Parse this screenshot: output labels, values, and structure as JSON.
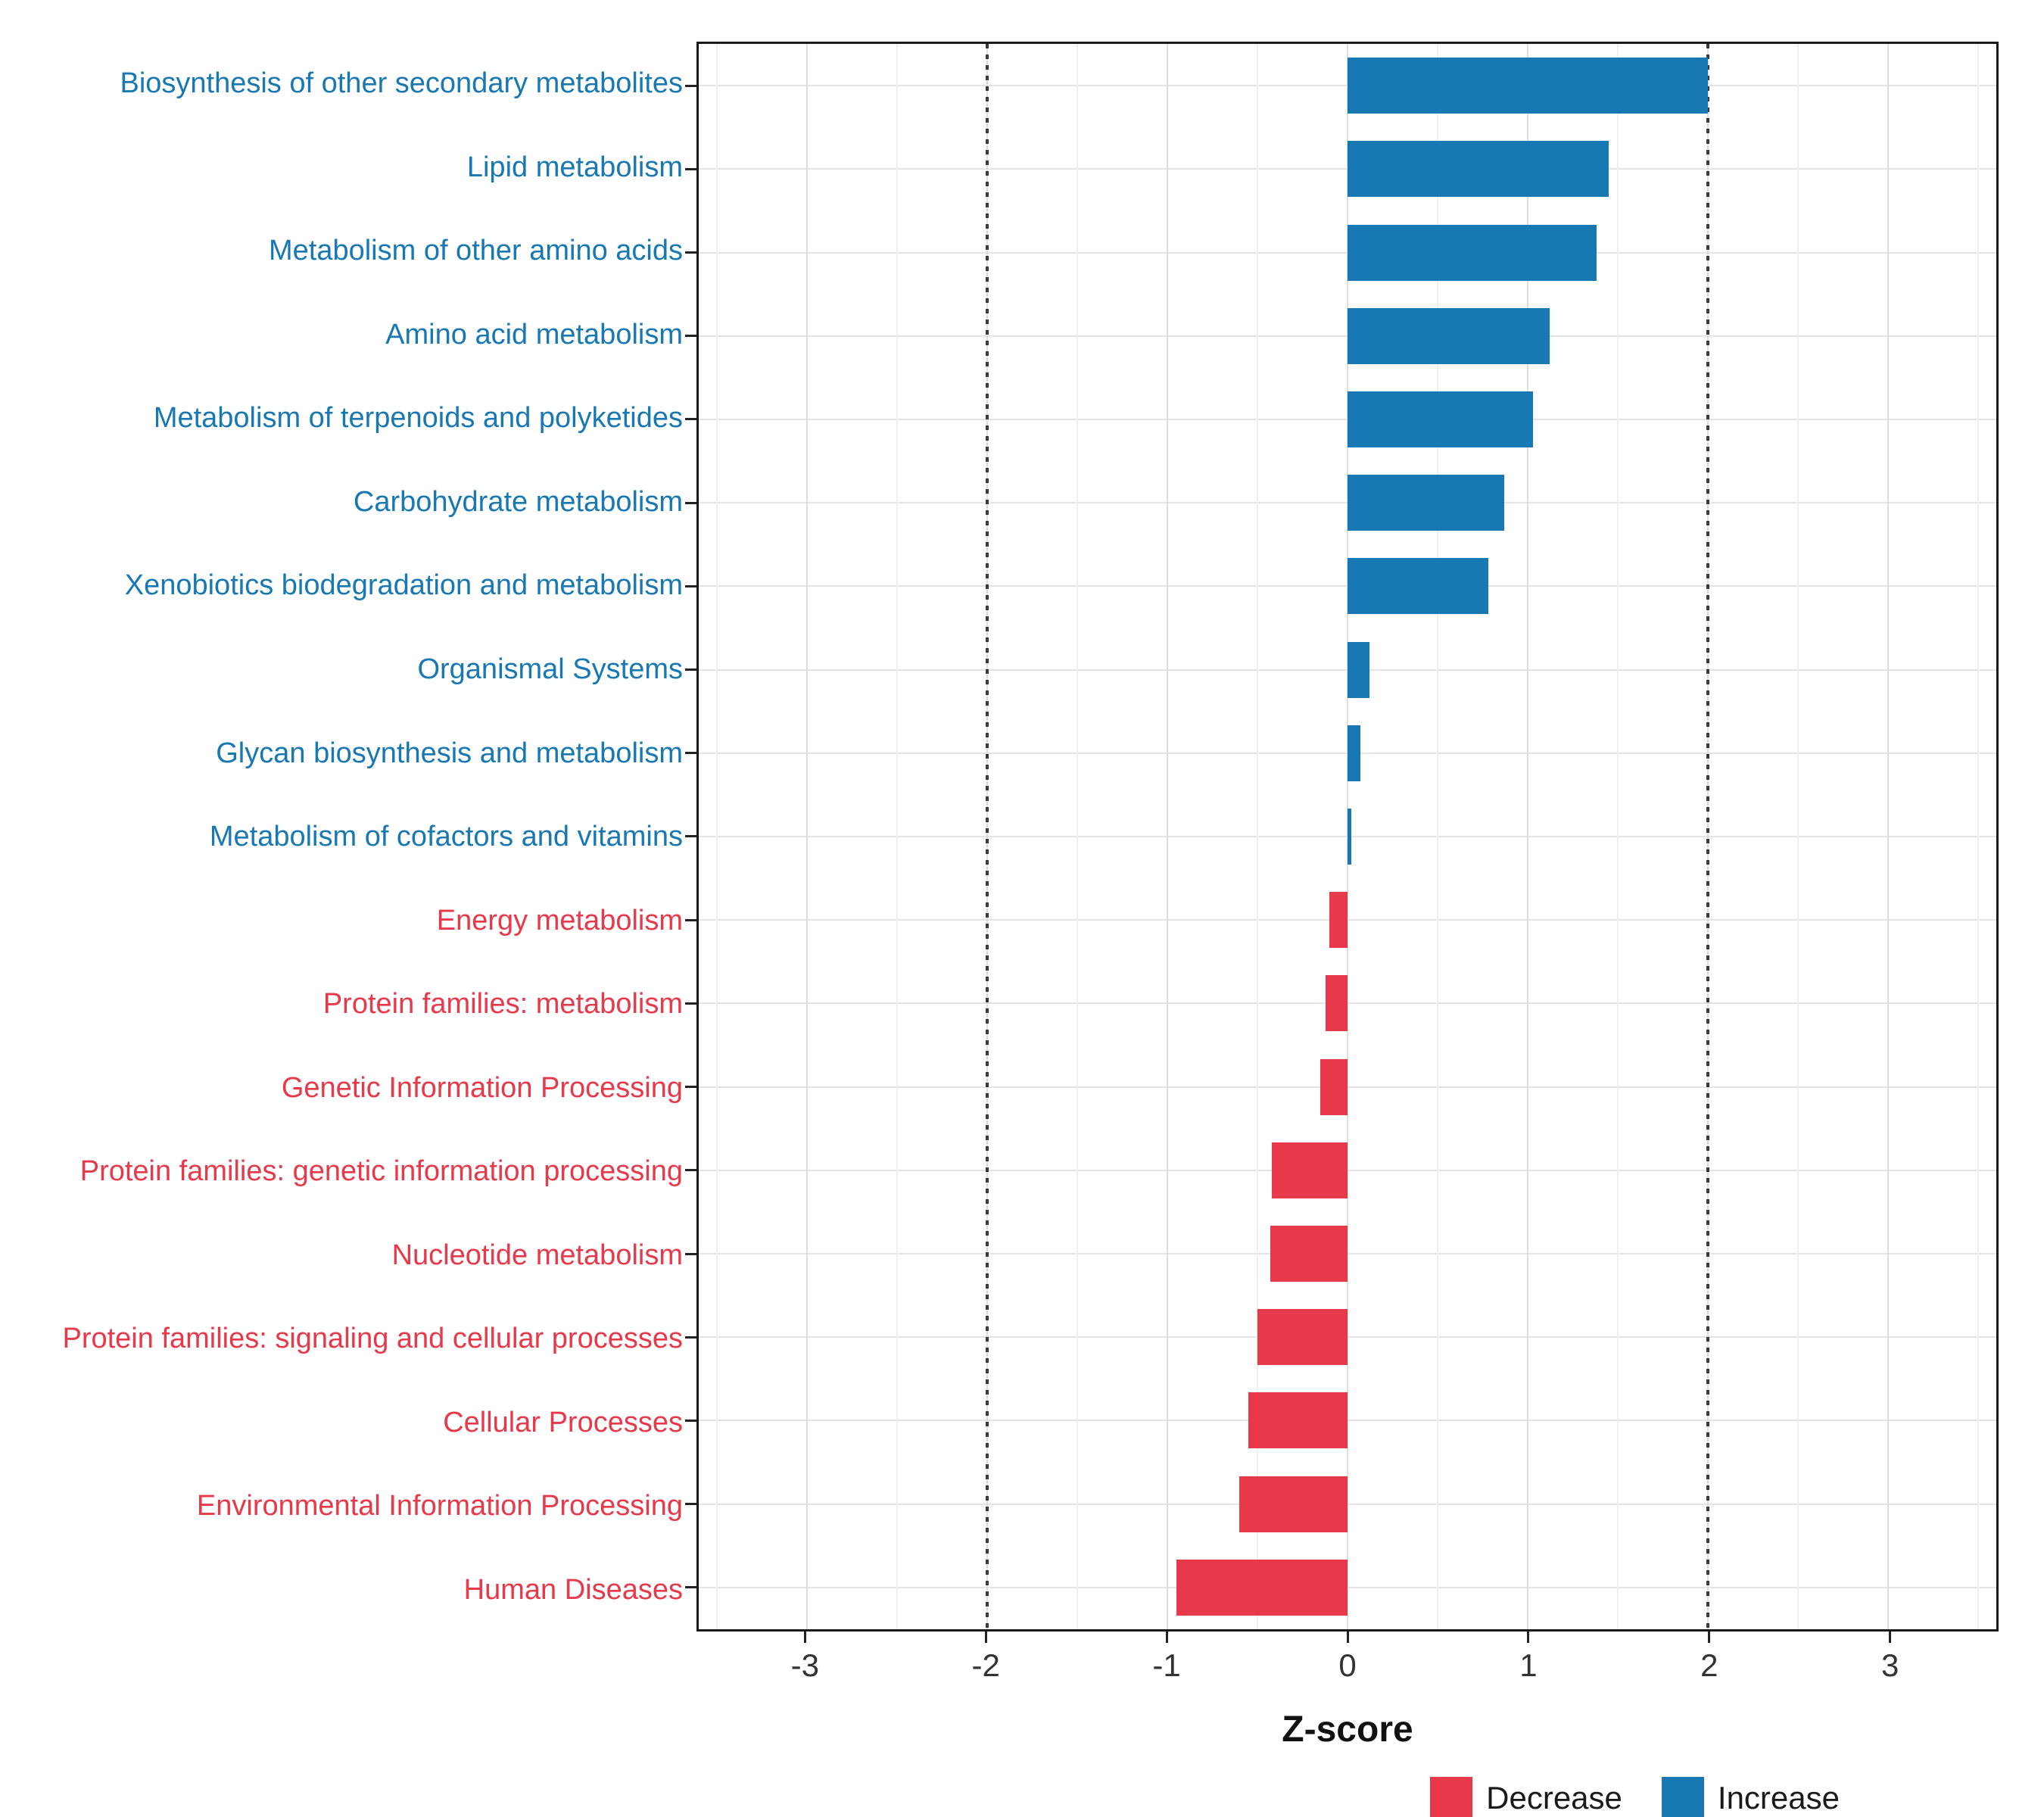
{
  "chart_data": {
    "type": "bar",
    "orientation": "horizontal",
    "title": "",
    "xlabel": "Z-score",
    "xlim": [
      -3.6,
      3.6
    ],
    "x_ticks": [
      -3,
      -2,
      -1,
      0,
      1,
      2,
      3
    ],
    "reference_lines": [
      -2,
      2
    ],
    "grid": true,
    "legend_position": "bottom-right",
    "colors": {
      "increase": "#1878B4",
      "decrease": "#E8394B"
    },
    "categories": [
      {
        "label": "Biosynthesis of other secondary metabolites",
        "value": 2.0,
        "direction": "increase"
      },
      {
        "label": "Lipid metabolism",
        "value": 1.45,
        "direction": "increase"
      },
      {
        "label": "Metabolism of other amino acids",
        "value": 1.38,
        "direction": "increase"
      },
      {
        "label": "Amino acid metabolism",
        "value": 1.12,
        "direction": "increase"
      },
      {
        "label": "Metabolism of terpenoids and polyketides",
        "value": 1.03,
        "direction": "increase"
      },
      {
        "label": "Carbohydrate metabolism",
        "value": 0.87,
        "direction": "increase"
      },
      {
        "label": "Xenobiotics biodegradation and metabolism",
        "value": 0.78,
        "direction": "increase"
      },
      {
        "label": "Organismal Systems",
        "value": 0.12,
        "direction": "increase"
      },
      {
        "label": "Glycan biosynthesis and metabolism",
        "value": 0.07,
        "direction": "increase"
      },
      {
        "label": "Metabolism of cofactors and vitamins",
        "value": 0.02,
        "direction": "increase"
      },
      {
        "label": "Energy metabolism",
        "value": -0.1,
        "direction": "decrease"
      },
      {
        "label": "Protein families: metabolism",
        "value": -0.12,
        "direction": "decrease"
      },
      {
        "label": "Genetic Information Processing",
        "value": -0.15,
        "direction": "decrease"
      },
      {
        "label": "Protein families: genetic information processing",
        "value": -0.42,
        "direction": "decrease"
      },
      {
        "label": "Nucleotide metabolism",
        "value": -0.43,
        "direction": "decrease"
      },
      {
        "label": "Protein families: signaling and cellular processes",
        "value": -0.5,
        "direction": "decrease"
      },
      {
        "label": "Cellular Processes",
        "value": -0.55,
        "direction": "decrease"
      },
      {
        "label": "Environmental Information Processing",
        "value": -0.6,
        "direction": "decrease"
      },
      {
        "label": "Human Diseases",
        "value": -0.95,
        "direction": "decrease"
      }
    ],
    "legend": [
      {
        "label": "Decrease",
        "direction": "decrease"
      },
      {
        "label": "Increase",
        "direction": "increase"
      }
    ]
  }
}
